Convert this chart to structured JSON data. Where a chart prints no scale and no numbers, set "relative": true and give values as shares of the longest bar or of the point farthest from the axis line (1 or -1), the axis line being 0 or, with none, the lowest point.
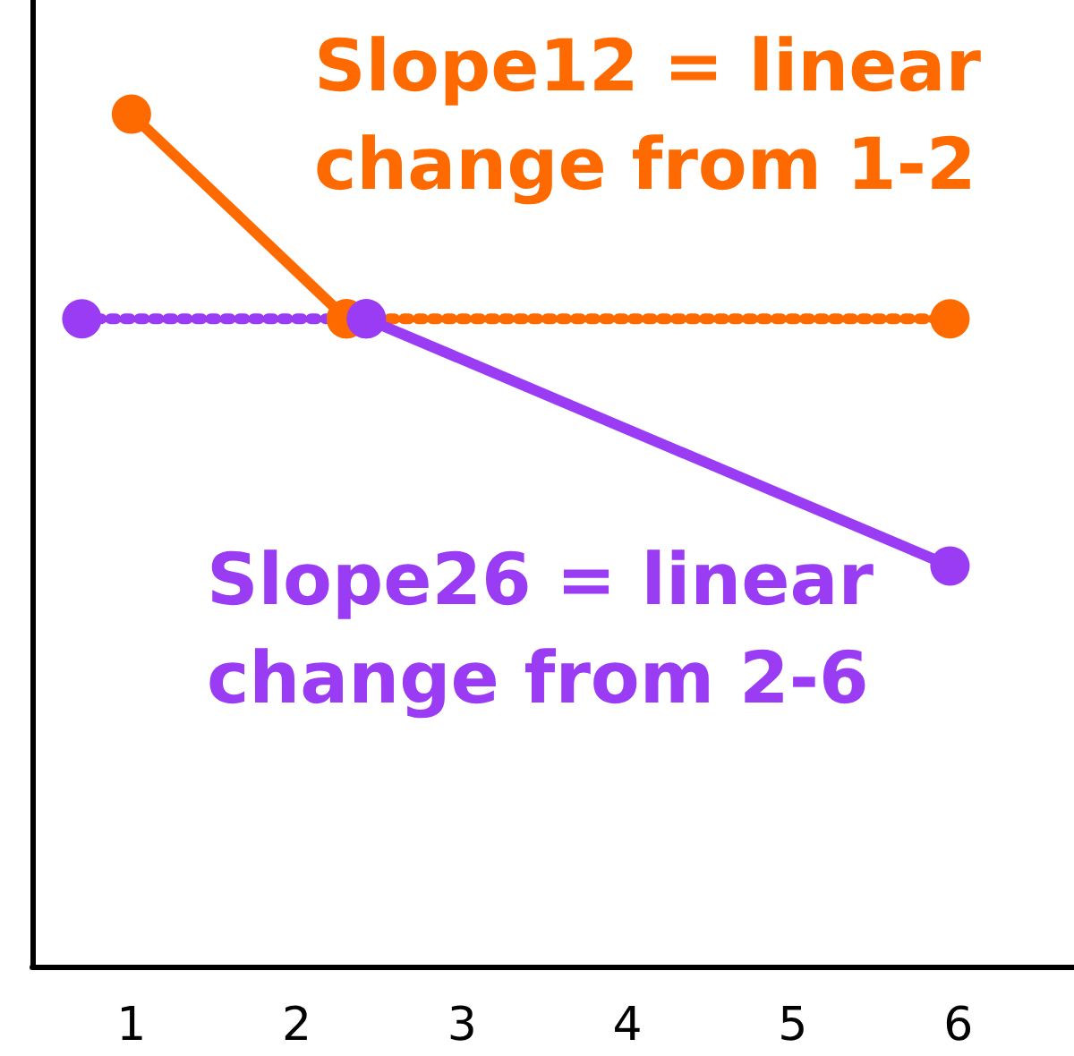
{
  "chart_data": {
    "type": "line",
    "relative": true,
    "xlim": [
      0.4,
      6.7
    ],
    "xticks": [
      1,
      2,
      3,
      4,
      5,
      6
    ],
    "tick_labels": "x",
    "marker": "circle",
    "grid": false,
    "series": [
      {
        "color": "#ff6a00",
        "x": [
          1,
          2.3
        ],
        "values": [
          1,
          0.76
        ],
        "line_style": "solid"
      },
      {
        "color": "#ff6a00",
        "x": [
          2.3,
          5.95
        ],
        "values": [
          0.76,
          0.76
        ],
        "line_style": "dotted"
      },
      {
        "color": "#9b3cf5",
        "x": [
          0.7,
          2.42
        ],
        "values": [
          0.76,
          0.76
        ],
        "line_style": "dotted"
      },
      {
        "color": "#9b3cf5",
        "x": [
          2.42,
          5.95
        ],
        "values": [
          0.76,
          0.47
        ],
        "line_style": "solid"
      }
    ],
    "annotations": [
      "Slope12 = linear change from 1-2",
      "Slope26 = linear change from 2-6"
    ]
  }
}
